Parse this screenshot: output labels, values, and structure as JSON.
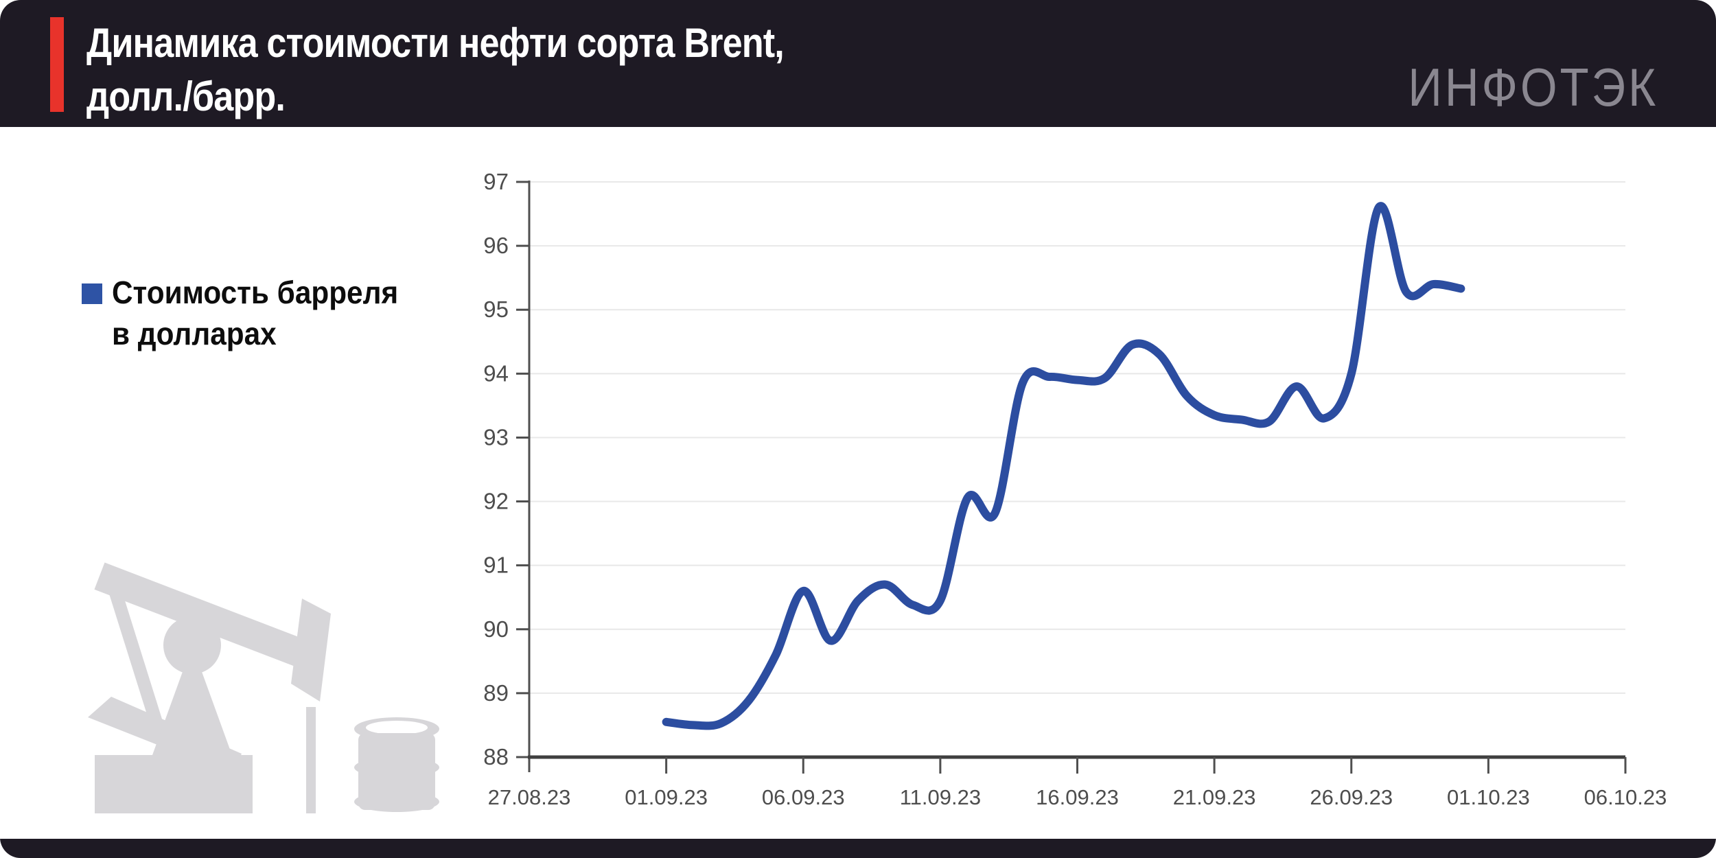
{
  "header": {
    "title_line1": "Динамика стоимости нефти сорта Brent,",
    "title_line2": "долл./барр.",
    "logo_text": "ИНФОТЭК"
  },
  "legend": {
    "line1": "Стоимость барреля",
    "line2": "в долларах"
  },
  "colors": {
    "header_bg": "#1e1a24",
    "accent_red": "#e8332b",
    "line_blue": "#2c4da0",
    "legend_blue": "#2e53a5",
    "icon_gray": "#d7d6d9",
    "axis_text": "#4d4d4d",
    "gridline": "#e8e8e8",
    "axis_line": "#3f3f3f"
  },
  "chart_data": {
    "type": "line",
    "title": "Динамика стоимости нефти сорта Brent, долл./барр.",
    "xlabel": "",
    "ylabel": "долл./барр.",
    "ylim": [
      88,
      97
    ],
    "y_tick_step": 1,
    "grid": true,
    "legend_position": "left",
    "x_axis_span_days": 40,
    "x_tick_labels": [
      "27.08.23",
      "01.09.23",
      "06.09.23",
      "11.09.23",
      "16.09.23",
      "21.09.23",
      "26.09.23",
      "01.10.23",
      "06.10.23"
    ],
    "series": [
      {
        "name": "Стоимость барреля в долларах",
        "color": "#2c4da0",
        "points": [
          [
            "01.09.23",
            88.55
          ],
          [
            "02.09.23",
            88.5
          ],
          [
            "03.09.23",
            88.53
          ],
          [
            "04.09.23",
            88.88
          ],
          [
            "05.09.23",
            89.6
          ],
          [
            "06.09.23",
            90.6
          ],
          [
            "07.09.23",
            89.82
          ],
          [
            "08.09.23",
            90.45
          ],
          [
            "09.09.23",
            90.7
          ],
          [
            "10.09.23",
            90.38
          ],
          [
            "11.09.23",
            90.45
          ],
          [
            "12.09.23",
            92.06
          ],
          [
            "13.09.23",
            91.82
          ],
          [
            "14.09.23",
            93.85
          ],
          [
            "15.09.23",
            93.95
          ],
          [
            "16.09.23",
            93.9
          ],
          [
            "17.09.23",
            93.93
          ],
          [
            "18.09.23",
            94.45
          ],
          [
            "19.09.23",
            94.3
          ],
          [
            "20.09.23",
            93.65
          ],
          [
            "21.09.23",
            93.35
          ],
          [
            "22.09.23",
            93.28
          ],
          [
            "23.09.23",
            93.25
          ],
          [
            "24.09.23",
            93.8
          ],
          [
            "25.09.23",
            93.3
          ],
          [
            "26.09.23",
            94.0
          ],
          [
            "27.09.23",
            96.6
          ],
          [
            "28.09.23",
            95.28
          ],
          [
            "29.09.23",
            95.4
          ],
          [
            "30.09.23",
            95.33
          ]
        ]
      }
    ]
  }
}
